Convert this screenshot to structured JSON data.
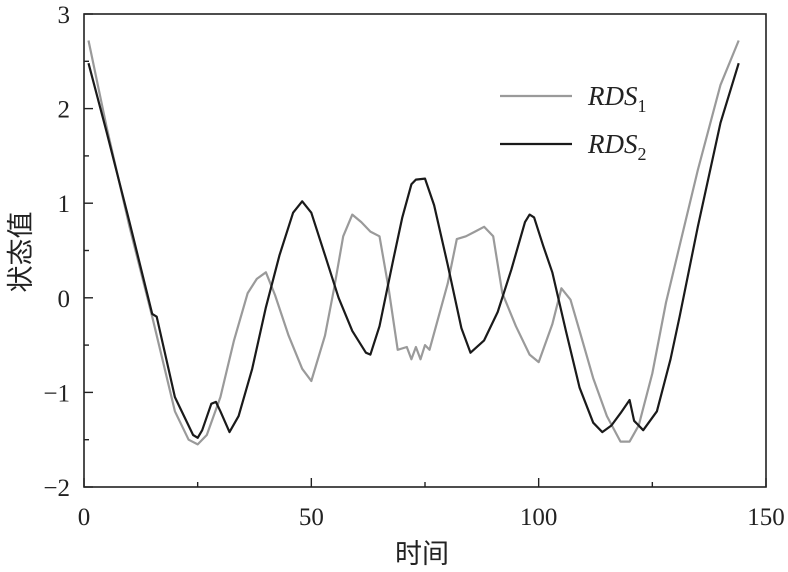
{
  "chart_data": {
    "type": "line",
    "xlabel": "时间",
    "ylabel": "状态值",
    "xlim": [
      0,
      150
    ],
    "ylim": [
      -2,
      3
    ],
    "xticks": [
      "0",
      "50",
      "100",
      "150"
    ],
    "yticks": [
      "3",
      "2",
      "1",
      "0",
      "−1",
      "−2"
    ],
    "legend_position": "top-right",
    "series": [
      {
        "name": "RDS",
        "name_subscript": "1",
        "color": "#9a9a9a",
        "x": [
          1,
          5,
          10,
          15,
          20,
          23,
          25,
          27,
          30,
          33,
          36,
          38,
          40,
          42,
          45,
          48,
          50,
          53,
          55,
          57,
          59,
          61,
          63,
          65,
          67,
          69,
          71,
          72,
          73,
          74,
          75,
          76,
          78,
          80,
          82,
          84,
          86,
          88,
          90,
          92,
          95,
          98,
          100,
          103,
          105,
          107,
          109,
          112,
          115,
          118,
          120,
          122,
          125,
          128,
          131,
          135,
          140,
          144
        ],
        "y": [
          2.72,
          1.8,
          0.75,
          -0.2,
          -1.2,
          -1.5,
          -1.55,
          -1.45,
          -1.05,
          -0.45,
          0.05,
          0.2,
          0.27,
          0.03,
          -0.4,
          -0.75,
          -0.88,
          -0.4,
          0.1,
          0.65,
          0.88,
          0.8,
          0.7,
          0.65,
          0.1,
          -0.55,
          -0.52,
          -0.65,
          -0.52,
          -0.65,
          -0.5,
          -0.55,
          -0.2,
          0.15,
          0.62,
          0.65,
          0.7,
          0.75,
          0.65,
          0.05,
          -0.3,
          -0.6,
          -0.68,
          -0.28,
          0.1,
          -0.02,
          -0.35,
          -0.85,
          -1.25,
          -1.52,
          -1.52,
          -1.35,
          -0.8,
          -0.05,
          0.55,
          1.35,
          2.25,
          2.72
        ]
      },
      {
        "name": "RDS",
        "name_subscript": "2",
        "color": "#1a1a1a",
        "x": [
          1,
          5,
          10,
          15,
          16,
          20,
          24,
          25,
          26,
          28,
          29,
          30,
          32,
          34,
          37,
          40,
          43,
          46,
          48,
          50,
          53,
          56,
          59,
          62,
          63,
          65,
          68,
          70,
          72,
          73,
          75,
          77,
          80,
          83,
          85,
          88,
          91,
          94,
          97,
          98,
          99,
          101,
          103,
          106,
          109,
          112,
          114,
          116,
          118,
          120,
          121,
          123,
          126,
          129,
          131,
          135,
          140,
          144
        ],
        "y": [
          2.48,
          1.75,
          0.8,
          -0.17,
          -0.2,
          -1.05,
          -1.45,
          -1.48,
          -1.4,
          -1.12,
          -1.1,
          -1.2,
          -1.42,
          -1.25,
          -0.75,
          -0.1,
          0.45,
          0.9,
          1.02,
          0.9,
          0.45,
          0.0,
          -0.35,
          -0.58,
          -0.6,
          -0.3,
          0.4,
          0.85,
          1.2,
          1.25,
          1.26,
          0.98,
          0.35,
          -0.32,
          -0.58,
          -0.45,
          -0.15,
          0.3,
          0.8,
          0.88,
          0.85,
          0.55,
          0.27,
          -0.35,
          -0.95,
          -1.32,
          -1.42,
          -1.35,
          -1.22,
          -1.08,
          -1.3,
          -1.4,
          -1.2,
          -0.65,
          -0.2,
          0.75,
          1.85,
          2.48
        ]
      }
    ]
  }
}
